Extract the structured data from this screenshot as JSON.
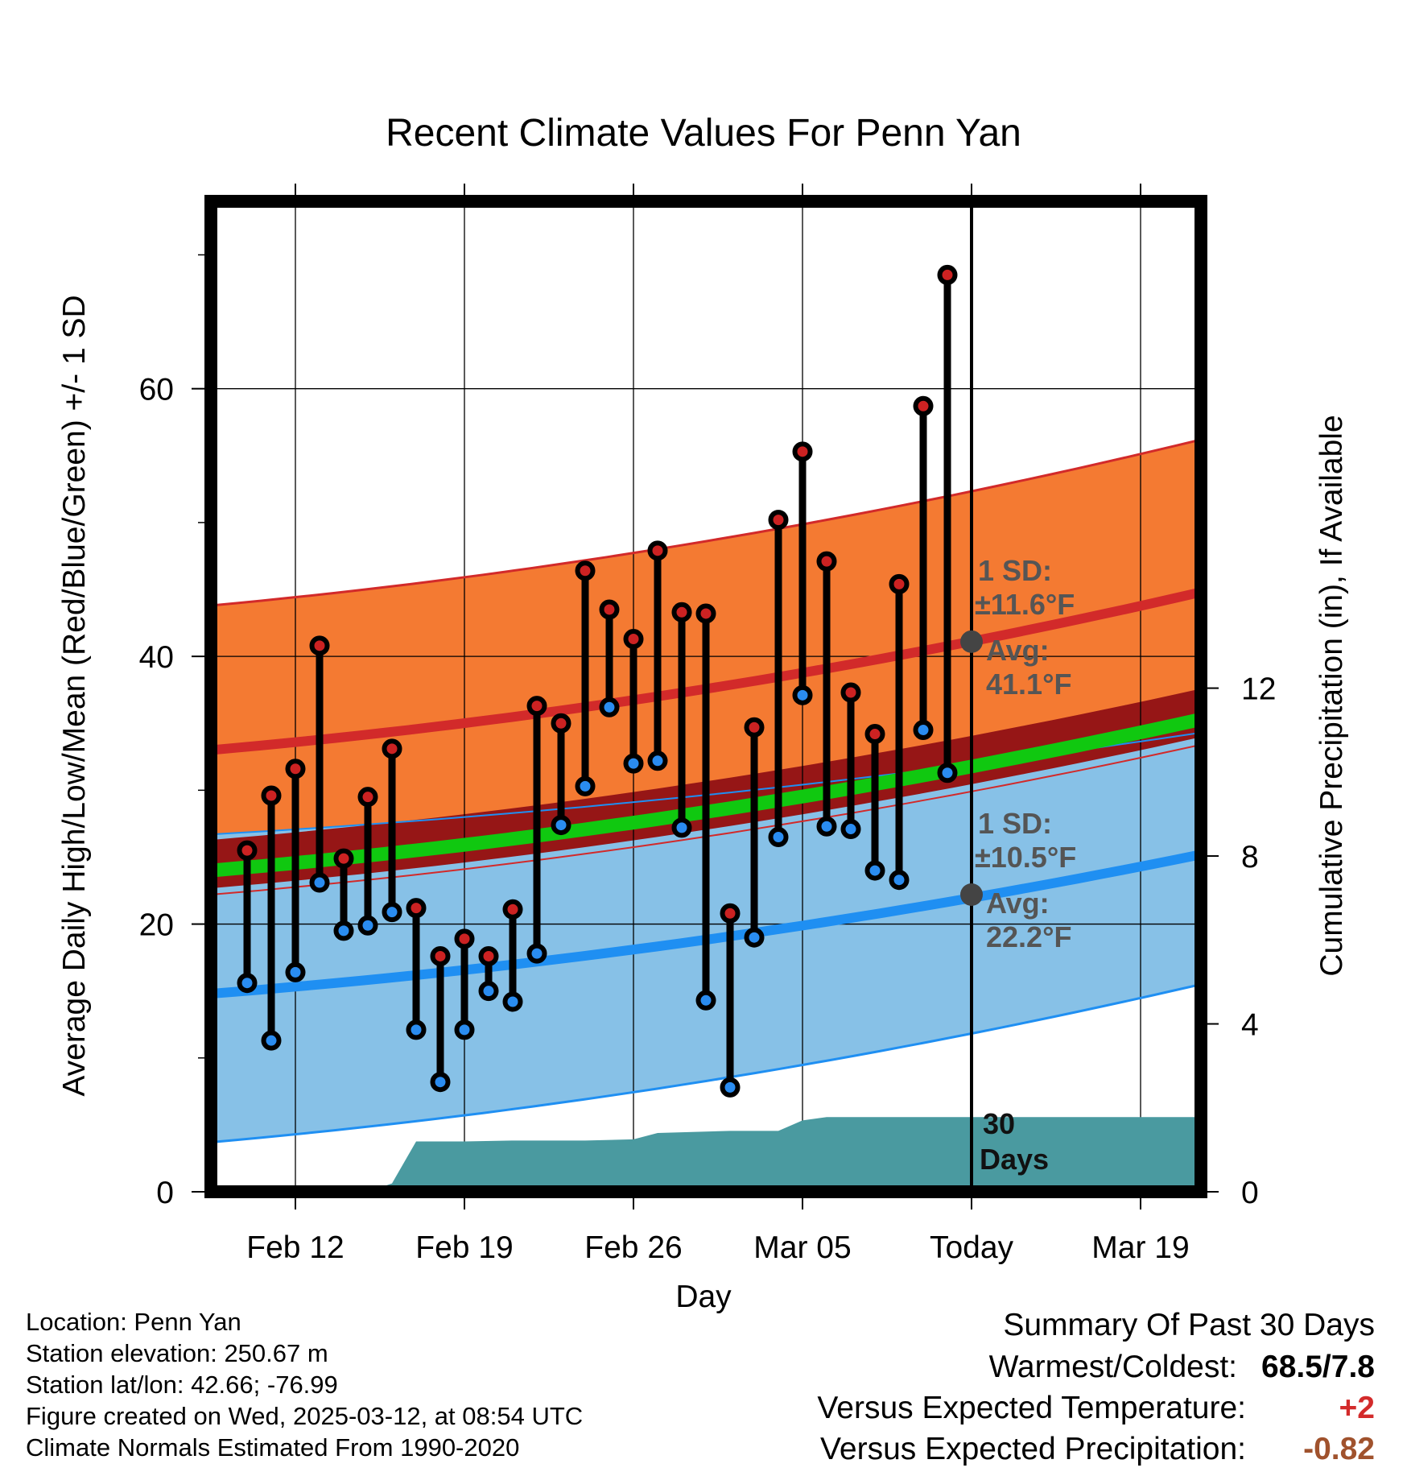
{
  "chart_data": {
    "type": "line",
    "title": "Recent Climate Values For Penn Yan",
    "xlabel": "Day",
    "ylabel_left": "Average Daily High/Low/Mean (Red/Blue/Green) +/- 1 SD",
    "ylabel_right": "Cumulative Precipitation (in), If Available",
    "x_tick_labels": [
      "Feb 12",
      "Feb 19",
      "Feb 26",
      "Mar 05",
      "Today",
      "Mar 19"
    ],
    "x_tick_days": [
      -28,
      -21,
      -14,
      -7,
      0,
      7
    ],
    "xlim_days": [
      -31.5,
      9.5
    ],
    "ylim": [
      0,
      74
    ],
    "y_ticks": [
      0,
      20,
      40,
      60
    ],
    "y_minor_ticks": [
      10,
      30,
      50,
      70
    ],
    "ylim_right": [
      0,
      23.6
    ],
    "y_ticks_right": [
      0,
      4,
      8,
      12
    ],
    "grid": true,
    "normals": {
      "high_mean_start": 33.0,
      "high_mean_end": 44.8,
      "high_upper_start": 43.8,
      "high_upper_end": 56.2,
      "low_mean_start": 14.8,
      "low_mean_end": 25.2,
      "low_upper_start": 26.7,
      "low_upper_end": 34.3,
      "low_lower_start": 3.7,
      "low_lower_end": 15.5,
      "band_mean_start": 24.0,
      "band_mean_end": 35.3
    },
    "annotations": {
      "high": {
        "sd_label": "1 SD:",
        "sd_value": "±11.6°F",
        "avg_label": "Avg:",
        "avg_value": "41.1°F",
        "avg": 41.1
      },
      "low": {
        "sd_label": "1 SD:",
        "sd_value": "±10.5°F",
        "avg_label": "Avg:",
        "avg_value": "22.2°F",
        "avg": 22.2
      },
      "window_line1": "30",
      "window_line2": "Days"
    },
    "series": [
      {
        "name": "High",
        "x": [
          -30,
          -29,
          -28,
          -27,
          -26,
          -25,
          -24,
          -23,
          -22,
          -21,
          -20,
          -19,
          -18,
          -17,
          -16,
          -15,
          -14,
          -13,
          -12,
          -11,
          -10,
          -9,
          -8,
          -7,
          -6,
          -5,
          -4,
          -3,
          -2,
          -1
        ],
        "values": [
          25.5,
          29.6,
          31.6,
          40.8,
          24.9,
          29.5,
          33.1,
          21.2,
          17.6,
          18.9,
          17.6,
          21.1,
          36.3,
          35.0,
          46.4,
          43.5,
          41.3,
          47.9,
          43.3,
          43.2,
          20.8,
          34.7,
          50.2,
          55.3,
          47.1,
          37.3,
          34.2,
          45.4,
          58.7,
          68.5
        ]
      },
      {
        "name": "Low",
        "x": [
          -30,
          -29,
          -28,
          -27,
          -26,
          -25,
          -24,
          -23,
          -22,
          -21,
          -20,
          -19,
          -18,
          -17,
          -16,
          -15,
          -14,
          -13,
          -12,
          -11,
          -10,
          -9,
          -8,
          -7,
          -6,
          -5,
          -4,
          -3,
          -2,
          -1
        ],
        "values": [
          15.6,
          11.3,
          16.4,
          23.1,
          19.5,
          19.9,
          20.9,
          12.1,
          8.2,
          12.1,
          15.0,
          14.2,
          17.8,
          27.4,
          30.3,
          36.2,
          32.0,
          32.2,
          27.2,
          14.3,
          7.8,
          19.0,
          26.5,
          37.1,
          27.3,
          27.1,
          24.0,
          23.3,
          34.5,
          31.3
        ]
      },
      {
        "name": "Cumulative Precipitation",
        "x": [
          -25,
          -24,
          -23,
          -21,
          -19,
          -16,
          -14,
          -13,
          -10,
          -8,
          -7,
          -6,
          -4,
          0,
          9.5
        ],
        "values": [
          0,
          0.2,
          1.2,
          1.2,
          1.22,
          1.22,
          1.25,
          1.4,
          1.45,
          1.45,
          1.7,
          1.78,
          1.78,
          1.78,
          1.78
        ]
      }
    ]
  },
  "footer": {
    "location": "Location: Penn Yan",
    "elevation": "Station elevation: 250.67 m",
    "latlon": "Station lat/lon: 42.66; -76.99",
    "created": "Figure created on Wed, 2025-03-12, at 08:54 UTC",
    "normals": "Climate Normals Estimated From 1990-2020"
  },
  "summary": {
    "title": "Summary Of Past 30 Days",
    "warmest_coldest_label": "Warmest/Coldest:",
    "warmest_coldest_value": "68.5/7.8",
    "temp_label": "Versus Expected Temperature:",
    "temp_value": "+2",
    "precip_label": "Versus Expected Precipitation:",
    "precip_value": "-0.82"
  },
  "colors": {
    "high_band": "#f47a32",
    "high_line": "#d22a2a",
    "low_band": "#87c1e7",
    "low_line": "#1f8ff2",
    "mean_band": "#961616",
    "mean_line": "#10c810",
    "precip": "#4a9aa0",
    "high_dot": "#cc2222",
    "low_dot": "#2a8cf0",
    "annotation": "#555555",
    "positive": "#d32b2b",
    "negative": "#a0522d"
  }
}
